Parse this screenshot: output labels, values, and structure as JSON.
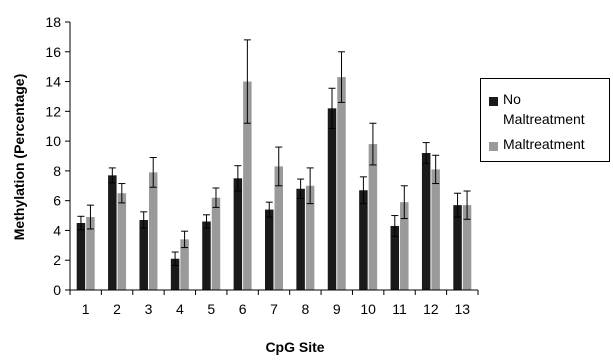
{
  "chart_data": {
    "type": "bar",
    "xlabel": "CpG Site",
    "ylabel": "Methylation (Percentage)",
    "categories": [
      "1",
      "2",
      "3",
      "4",
      "5",
      "6",
      "7",
      "8",
      "9",
      "10",
      "11",
      "12",
      "13"
    ],
    "ylim": [
      0,
      18
    ],
    "yticks": [
      0,
      2,
      4,
      6,
      8,
      10,
      12,
      14,
      16,
      18
    ],
    "grid": false,
    "legend_position": "right",
    "error_bars": true,
    "series": [
      {
        "name": "No Maltreatment",
        "color": "#1a1a1a",
        "values": [
          4.5,
          7.7,
          4.7,
          2.1,
          4.6,
          7.5,
          5.4,
          6.8,
          12.2,
          6.7,
          4.3,
          9.2,
          5.7
        ],
        "errors": [
          0.45,
          0.5,
          0.55,
          0.45,
          0.45,
          0.85,
          0.5,
          0.65,
          1.35,
          0.9,
          0.7,
          0.7,
          0.8
        ]
      },
      {
        "name": "Maltreatment",
        "color": "#9a9a9a",
        "values": [
          4.9,
          6.5,
          7.9,
          3.4,
          6.2,
          14.0,
          8.3,
          7.0,
          14.3,
          9.8,
          5.9,
          8.1,
          5.7
        ],
        "errors": [
          0.8,
          0.65,
          1.0,
          0.55,
          0.65,
          2.8,
          1.3,
          1.2,
          1.7,
          1.4,
          1.1,
          0.95,
          0.95
        ]
      }
    ]
  },
  "legend": {
    "line1": "No",
    "line2": "Maltreatment",
    "line3": "Maltreatment"
  }
}
